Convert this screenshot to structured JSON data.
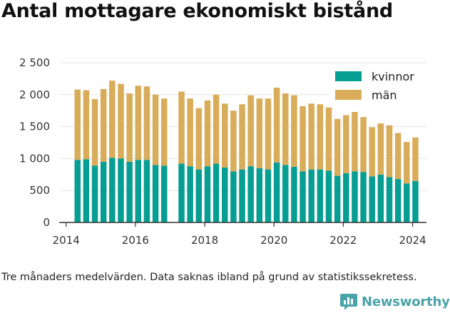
{
  "title": "Antal mottagare ekonomiskt bistånd",
  "caption": "Tre månaders medelvärden. Data saknas ibland på grund av statistikssekretess.",
  "brand": {
    "name": "Newsworthy",
    "color": "#4aa3a8"
  },
  "chart_data": {
    "type": "bar",
    "stacked": true,
    "x_ticks": [
      "2014",
      "2016",
      "2018",
      "2020",
      "2022",
      "2024"
    ],
    "y_ticks": [
      "0",
      "500",
      "1 000",
      "1 500",
      "2 000",
      "2 500"
    ],
    "ylim": [
      0,
      2500
    ],
    "grid": "horizontal",
    "legend_position": "top-right",
    "x": [
      2014.33,
      2014.58,
      2014.83,
      2015.08,
      2015.33,
      2015.58,
      2015.83,
      2016.08,
      2016.33,
      2016.58,
      2016.83,
      2017.33,
      2017.58,
      2017.83,
      2018.08,
      2018.33,
      2018.58,
      2018.83,
      2019.08,
      2019.33,
      2019.58,
      2019.83,
      2020.08,
      2020.33,
      2020.58,
      2020.83,
      2021.08,
      2021.33,
      2021.58,
      2021.83,
      2022.08,
      2022.33,
      2022.58,
      2022.83,
      2023.08,
      2023.33,
      2023.58,
      2023.83,
      2024.08
    ],
    "series": [
      {
        "name": "kvinnor",
        "color": "#069e92",
        "values": [
          980,
          990,
          890,
          950,
          1010,
          1000,
          950,
          980,
          980,
          900,
          890,
          920,
          880,
          830,
          880,
          920,
          860,
          800,
          830,
          880,
          850,
          830,
          940,
          900,
          870,
          800,
          830,
          830,
          810,
          730,
          770,
          800,
          790,
          720,
          750,
          710,
          680,
          610,
          650
        ]
      },
      {
        "name": "män",
        "color": "#d8ac59",
        "values": [
          1100,
          1080,
          1040,
          1140,
          1210,
          1170,
          1070,
          1160,
          1150,
          1100,
          1050,
          1130,
          1060,
          960,
          1030,
          1080,
          1000,
          950,
          1020,
          1110,
          1090,
          1110,
          1170,
          1120,
          1120,
          1020,
          1030,
          1020,
          990,
          890,
          910,
          930,
          860,
          770,
          800,
          810,
          720,
          650,
          680
        ]
      }
    ]
  }
}
